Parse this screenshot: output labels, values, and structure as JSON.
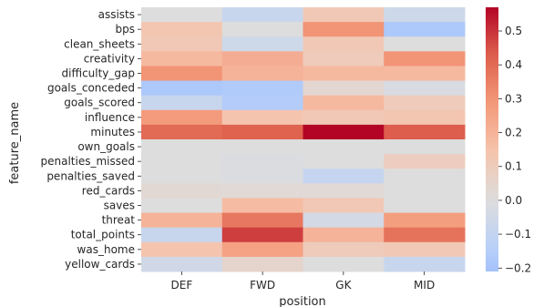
{
  "chart_data": {
    "type": "heatmap",
    "title": "",
    "xlabel": "position",
    "ylabel": "feature_name",
    "columns": [
      "DEF",
      "FWD",
      "GK",
      "MID"
    ],
    "rows": [
      "assists",
      "bps",
      "clean_sheets",
      "creativity",
      "difficulty_gap",
      "goals_conceded",
      "goals_scored",
      "influence",
      "minutes",
      "own_goals",
      "penalties_missed",
      "penalties_saved",
      "red_cards",
      "saves",
      "threat",
      "total_points",
      "was_home",
      "yellow_cards"
    ],
    "values": [
      [
        0.0,
        -0.08,
        0.12,
        -0.06
      ],
      [
        0.13,
        0.0,
        0.3,
        -0.18
      ],
      [
        0.12,
        -0.06,
        0.12,
        0.0
      ],
      [
        0.18,
        0.22,
        0.1,
        0.3
      ],
      [
        0.3,
        0.2,
        0.18,
        0.18
      ],
      [
        -0.18,
        -0.17,
        0.04,
        -0.02
      ],
      [
        -0.08,
        -0.16,
        0.18,
        0.1
      ],
      [
        0.28,
        0.14,
        0.12,
        0.13
      ],
      [
        0.4,
        0.42,
        0.57,
        0.43
      ],
      [
        0.0,
        0.0,
        0.0,
        0.0
      ],
      [
        0.0,
        -0.01,
        0.0,
        0.09
      ],
      [
        0.0,
        -0.01,
        -0.09,
        0.0
      ],
      [
        0.03,
        0.02,
        0.02,
        0.0
      ],
      [
        0.0,
        0.17,
        0.12,
        0.0
      ],
      [
        0.2,
        0.37,
        -0.04,
        0.27
      ],
      [
        -0.08,
        0.48,
        0.2,
        0.38
      ],
      [
        0.14,
        0.26,
        0.1,
        0.12
      ],
      [
        -0.05,
        0.05,
        0.0,
        -0.08
      ]
    ],
    "colorbar": {
      "min": -0.21,
      "max": 0.57,
      "center": 0,
      "ticks": [
        -0.2,
        -0.1,
        0.0,
        0.1,
        0.2,
        0.3,
        0.4,
        0.5
      ],
      "tick_labels": [
        "−0.2",
        "−0.1",
        "0.0",
        "0.1",
        "0.2",
        "0.3",
        "0.4",
        "0.5"
      ],
      "colormap": "coolwarm"
    },
    "grid": false,
    "legend": "colorbar-right"
  }
}
